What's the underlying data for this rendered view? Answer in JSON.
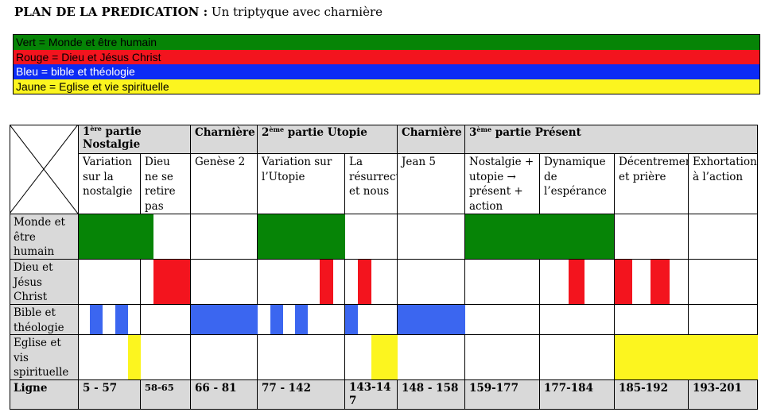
{
  "title": {
    "bold": "PLAN DE LA PREDICATION :",
    "rest": " Un triptyque avec charnière"
  },
  "legend": {
    "green": "Vert = Monde et être humain",
    "red": "Rouge = Dieu et Jésus Christ",
    "blue": "Bleu = bible et théologie",
    "yellow": "Jaune = Eglise et vie spirituelle"
  },
  "colors": {
    "green": "#068406",
    "red": "#f3141e",
    "blue": "#3b66f0",
    "yellow": "#fcf51f",
    "gray": "#d9d9d9"
  },
  "table": {
    "parts": {
      "p1_num": "1",
      "p1_sup": "ère",
      "p1_rest": " partie Nostalgie",
      "hinge1": "Charnière",
      "p2_num": "2",
      "p2_sup": "ème",
      "p2_rest": " partie Utopie",
      "hinge2": "Charnière",
      "p3_num": "3",
      "p3_sup": "ème",
      "p3_rest": " partie Présent"
    },
    "subheaders": [
      "Variation sur la nostalgie",
      "Dieu ne se retire pas",
      "Genèse 2",
      "Variation sur l’Utopie",
      "La résurrection et nous",
      "Jean 5",
      "Nostalgie + utopie → présent + action",
      "Dynamique de l’espérance",
      "Décentrement et prière",
      "Exhortation à l’action"
    ],
    "rows": [
      "Monde et être humain",
      "Dieu et Jésus Christ",
      "Bible et théologie",
      "Eglise et vis spirituelle"
    ],
    "ligne_label": "Ligne",
    "lignes": [
      "5 - 57",
      "58-65",
      "66 - 81",
      "77 - 142",
      "143-147",
      "148 - 158",
      "159-177",
      "177-184",
      "185-192",
      "193-201"
    ]
  }
}
